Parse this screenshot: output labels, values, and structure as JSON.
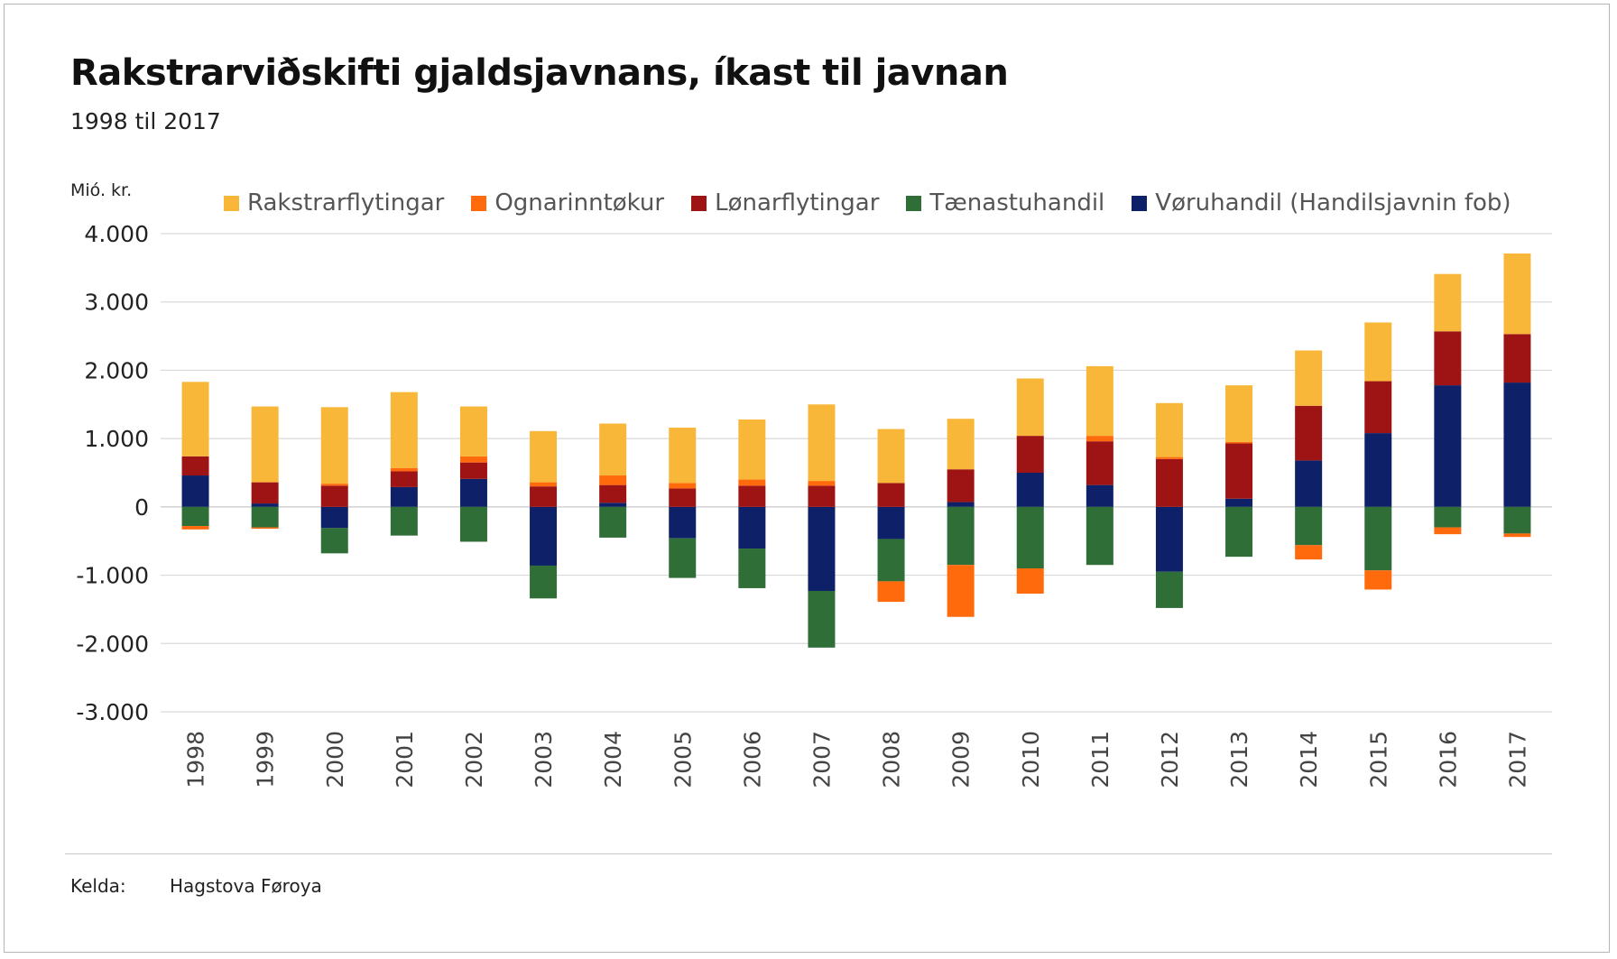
{
  "chart_data": {
    "type": "bar",
    "stacked": true,
    "title": "Rakstrarviðskifti gjaldsjavnans, íkast til javnan",
    "subtitle": "1998 til 2017",
    "ylabel": "Mió. kr.",
    "xlabel": "",
    "ylim": [
      -3000,
      4000
    ],
    "yticks": [
      4000,
      3000,
      2000,
      1000,
      0,
      -1000,
      -2000,
      -3000
    ],
    "ytick_labels": [
      "4.000",
      "3.000",
      "2.000",
      "1.000",
      "0",
      "-1.000",
      "-2.000",
      "-3.000"
    ],
    "grid": true,
    "legend_position": "top",
    "categories": [
      "1998",
      "1999",
      "2000",
      "2001",
      "2002",
      "2003",
      "2004",
      "2005",
      "2006",
      "2007",
      "2008",
      "2009",
      "2010",
      "2011",
      "2012",
      "2013",
      "2014",
      "2015",
      "2016",
      "2017"
    ],
    "stack_order": [
      "Vøruhandil (Handilsjavnin fob)",
      "Tænastuhandil",
      "Lønarflytingar",
      "Ognarinntøkur",
      "Rakstrarflytingar"
    ],
    "legend_order": [
      "Rakstrarflytingar",
      "Ognarinntøkur",
      "Lønarflytingar",
      "Tænastuhandil",
      "Vøruhandil (Handilsjavnin fob)"
    ],
    "series": [
      {
        "name": "Vøruhandil (Handilsjavnin fob)",
        "color": "#0e2068",
        "values": [
          460,
          50,
          -310,
          290,
          410,
          -860,
          60,
          -460,
          -610,
          -1230,
          -470,
          70,
          500,
          320,
          -950,
          120,
          680,
          1080,
          1780,
          1820
        ]
      },
      {
        "name": "Tænastuhandil",
        "color": "#2f6e36",
        "values": [
          -280,
          -300,
          -370,
          -420,
          -510,
          -480,
          -450,
          -580,
          -580,
          -830,
          -620,
          -850,
          -900,
          -850,
          -530,
          -730,
          -560,
          -930,
          -300,
          -390
        ]
      },
      {
        "name": "Lønarflytingar",
        "color": "#9e1414",
        "values": [
          280,
          310,
          310,
          230,
          240,
          300,
          260,
          270,
          310,
          310,
          350,
          480,
          540,
          640,
          700,
          810,
          800,
          760,
          790,
          710
        ]
      },
      {
        "name": "Ognarinntøkur",
        "color": "#ff6a0d",
        "values": [
          -50,
          -20,
          30,
          50,
          90,
          60,
          140,
          80,
          90,
          70,
          -300,
          -760,
          -370,
          80,
          30,
          20,
          -210,
          -280,
          -100,
          -50
        ]
      },
      {
        "name": "Rakstrarflytingar",
        "color": "#f8b739",
        "values": [
          1090,
          1110,
          1120,
          1110,
          730,
          750,
          760,
          810,
          880,
          1120,
          790,
          740,
          840,
          1020,
          790,
          830,
          810,
          860,
          840,
          1180
        ]
      }
    ]
  },
  "source": {
    "label": "Kelda:",
    "value": "Hagstova Føroya"
  }
}
